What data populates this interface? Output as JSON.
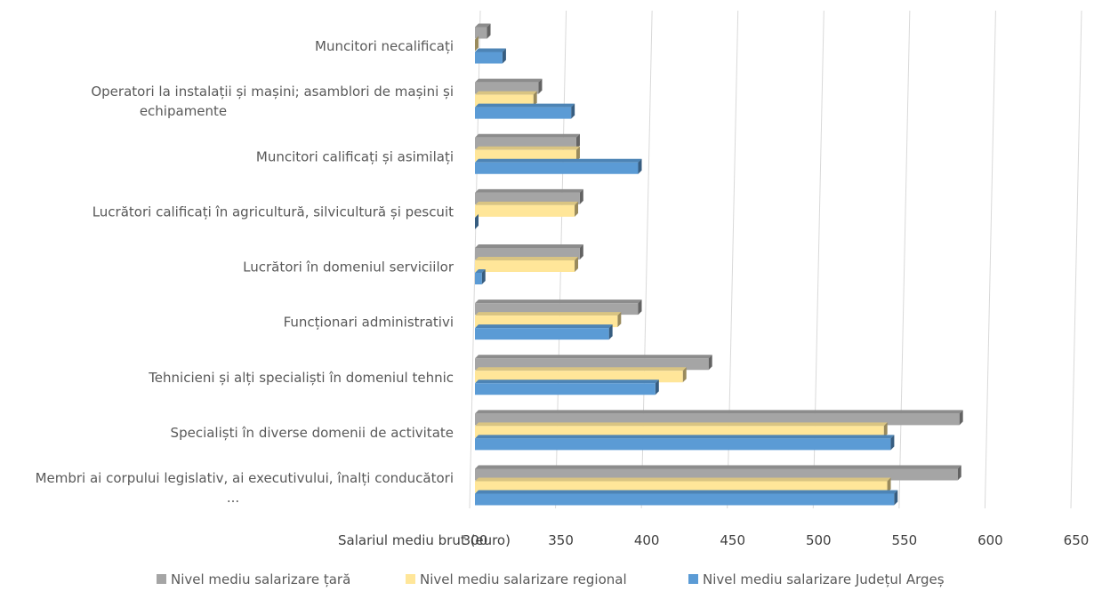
{
  "chart_data": {
    "type": "bar",
    "orientation": "horizontal",
    "style": "3d-clustered",
    "categories": [
      [
        "Muncitori necalificați"
      ],
      [
        "Operatori la instalații și mașini; asamblori de mașini și",
        "echipamente"
      ],
      [
        "Muncitori calificați și asimilați"
      ],
      [
        "Lucrători calificați în agricultură, silvicultură și pescuit"
      ],
      [
        "Lucrători în domeniul serviciilor"
      ],
      [
        "Funcționari administrativi"
      ],
      [
        "Tehnicieni și alți specialiști în domeniul tehnic"
      ],
      [
        "Specialiști în diverse domenii de activitate"
      ],
      [
        "Membri ai corpului legislativ, ai executivului, înalți conducători",
        "..."
      ]
    ],
    "series": [
      {
        "name": "Nivel mediu salarizare țară",
        "color": "#a5a5a5",
        "values": [
          307,
          337,
          359,
          361,
          361,
          395,
          436,
          582,
          581
        ]
      },
      {
        "name": "Nivel mediu salarizare regional",
        "color": "#ffe699",
        "values": [
          300,
          334,
          359,
          358,
          358,
          383,
          421,
          538,
          540
        ]
      },
      {
        "name": "Nivel mediu salarizare Județul Argeș",
        "color": "#5b9bd5",
        "values": [
          316,
          356,
          395,
          300,
          304,
          378,
          405,
          542,
          544
        ]
      }
    ],
    "xlabel": "Salariul mediu brut (euro)",
    "ylabel": "",
    "xlim": [
      300,
      650
    ],
    "xticks": [
      300,
      350,
      400,
      450,
      500,
      550,
      600,
      650
    ],
    "grid": true,
    "legend": "bottom"
  }
}
